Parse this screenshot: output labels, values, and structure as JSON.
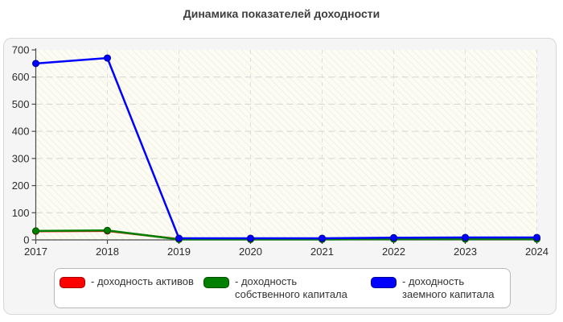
{
  "title": "Динамика показателей доходности",
  "chart_data": {
    "type": "line",
    "title": "Динамика показателей доходности",
    "categories": [
      "2017",
      "2018",
      "2019",
      "2020",
      "2021",
      "2022",
      "2023",
      "2024"
    ],
    "series": [
      {
        "name": "доходность активов",
        "color": "#ff0000",
        "marker_border": "#a80000",
        "values": [
          32,
          33,
          3,
          3,
          3,
          4,
          5,
          5
        ]
      },
      {
        "name": "доходность собственного капитала",
        "color": "#008000",
        "marker_border": "#004d00",
        "values": [
          33,
          35,
          2,
          2,
          2,
          3,
          3,
          3
        ]
      },
      {
        "name": "доходность заемного капитала",
        "color": "#0000ff",
        "marker_border": "#000099",
        "values": [
          650,
          670,
          6,
          6,
          6,
          8,
          9,
          9
        ]
      }
    ],
    "xlabel": "",
    "ylabel": "",
    "ylim": [
      0,
      700
    ],
    "yticks": [
      0,
      100,
      200,
      300,
      400,
      500,
      600,
      700
    ],
    "grid": true,
    "gridline_style": "dashed",
    "legend_position": "bottom",
    "plot_bg": "#fcfcf3",
    "hatch_color": "#e8e8df",
    "axis_color": "#4a4a4a",
    "tick_label_color": "#2b2b2b",
    "h_grid_color": "#d4d4d4",
    "v_grid_color": "#dedede"
  },
  "legend": {
    "items": [
      {
        "label": "- доходность активов",
        "fill": "#ff0000",
        "border": "#a80000"
      },
      {
        "label": "- доходность собственного капитала",
        "fill": "#008000",
        "border": "#004d00"
      },
      {
        "label": "- доходность заемного капитала",
        "fill": "#0000ff",
        "border": "#000099"
      }
    ]
  }
}
